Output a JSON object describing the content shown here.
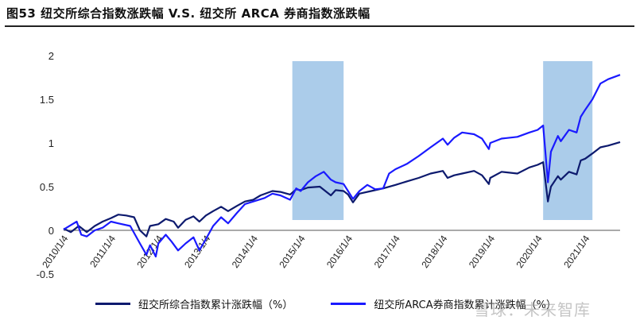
{
  "title": "图53 纽交所综合指数涨跌幅 V.S. 纽交所 ARCA 券商指数涨跌幅",
  "watermark": "雪球：未来智库",
  "colors": {
    "nyse": "#0d1a6e",
    "arca": "#1a1aff",
    "shade": "#9cc3e6"
  },
  "chart_data": {
    "type": "line",
    "title": "",
    "xlabel": "",
    "ylabel": "",
    "ylim": [
      -0.5,
      2
    ],
    "yticks": [
      "-0.5",
      "0",
      "0.5",
      "1",
      "1.5",
      "2"
    ],
    "xticks": [
      "2010/1/4",
      "2011/1/4",
      "2012/1/4",
      "2013/1/4",
      "2014/1/4",
      "2015/1/4",
      "2016/1/4",
      "2017/1/4",
      "2018/1/4",
      "2019/1/4",
      "2020/1/4",
      "2021/1/4"
    ],
    "xrange": [
      "2010-01-04",
      "2021-09-30"
    ],
    "shaded_periods": [
      [
        "2014-11-01",
        "2015-12-01"
      ],
      [
        "2020-02-15",
        "2021-03-01"
      ]
    ],
    "legend_position": "bottom",
    "series": [
      {
        "name": "纽交所综合指数累计涨跌幅（%）",
        "color_key": "nyse",
        "points": [
          [
            "2010-01-04",
            0.02
          ],
          [
            "2010-03-01",
            -0.02
          ],
          [
            "2010-05-01",
            0.05
          ],
          [
            "2010-07-01",
            -0.02
          ],
          [
            "2010-09-01",
            0.05
          ],
          [
            "2010-11-01",
            0.1
          ],
          [
            "2011-01-04",
            0.14
          ],
          [
            "2011-03-01",
            0.18
          ],
          [
            "2011-05-01",
            0.17
          ],
          [
            "2011-07-01",
            0.15
          ],
          [
            "2011-08-15",
            0.0
          ],
          [
            "2011-10-04",
            -0.07
          ],
          [
            "2011-11-01",
            0.05
          ],
          [
            "2012-01-04",
            0.07
          ],
          [
            "2012-03-01",
            0.13
          ],
          [
            "2012-05-01",
            0.1
          ],
          [
            "2012-06-04",
            0.03
          ],
          [
            "2012-08-01",
            0.12
          ],
          [
            "2012-10-01",
            0.16
          ],
          [
            "2012-11-15",
            0.1
          ],
          [
            "2013-01-04",
            0.17
          ],
          [
            "2013-03-01",
            0.22
          ],
          [
            "2013-05-01",
            0.27
          ],
          [
            "2013-06-24",
            0.22
          ],
          [
            "2013-09-01",
            0.28
          ],
          [
            "2013-11-01",
            0.33
          ],
          [
            "2014-01-04",
            0.35
          ],
          [
            "2014-03-01",
            0.4
          ],
          [
            "2014-06-01",
            0.45
          ],
          [
            "2014-08-01",
            0.44
          ],
          [
            "2014-10-15",
            0.41
          ],
          [
            "2014-12-01",
            0.47
          ],
          [
            "2015-01-04",
            0.46
          ],
          [
            "2015-03-01",
            0.49
          ],
          [
            "2015-06-01",
            0.5
          ],
          [
            "2015-08-25",
            0.4
          ],
          [
            "2015-10-01",
            0.46
          ],
          [
            "2015-12-01",
            0.45
          ],
          [
            "2016-01-04",
            0.41
          ],
          [
            "2016-02-11",
            0.32
          ],
          [
            "2016-04-01",
            0.42
          ],
          [
            "2016-07-01",
            0.45
          ],
          [
            "2016-10-01",
            0.48
          ],
          [
            "2017-01-04",
            0.52
          ],
          [
            "2017-04-01",
            0.56
          ],
          [
            "2017-07-01",
            0.6
          ],
          [
            "2017-10-01",
            0.65
          ],
          [
            "2018-01-04",
            0.68
          ],
          [
            "2018-02-09",
            0.6
          ],
          [
            "2018-04-01",
            0.63
          ],
          [
            "2018-06-01",
            0.65
          ],
          [
            "2018-09-01",
            0.68
          ],
          [
            "2018-11-01",
            0.63
          ],
          [
            "2018-12-24",
            0.53
          ],
          [
            "2019-01-04",
            0.6
          ],
          [
            "2019-04-01",
            0.67
          ],
          [
            "2019-08-01",
            0.65
          ],
          [
            "2019-11-01",
            0.72
          ],
          [
            "2020-01-04",
            0.75
          ],
          [
            "2020-02-15",
            0.78
          ],
          [
            "2020-03-23",
            0.33
          ],
          [
            "2020-04-15",
            0.5
          ],
          [
            "2020-06-08",
            0.62
          ],
          [
            "2020-06-30",
            0.58
          ],
          [
            "2020-09-01",
            0.67
          ],
          [
            "2020-10-30",
            0.64
          ],
          [
            "2020-12-01",
            0.8
          ],
          [
            "2021-01-04",
            0.82
          ],
          [
            "2021-03-01",
            0.88
          ],
          [
            "2021-05-01",
            0.95
          ],
          [
            "2021-07-01",
            0.97
          ],
          [
            "2021-09-30",
            1.01
          ]
        ]
      },
      {
        "name": "纽交所ARCA券商指数累计涨跌幅（%）",
        "color_key": "arca",
        "points": [
          [
            "2010-01-04",
            0.01
          ],
          [
            "2010-03-01",
            0.06
          ],
          [
            "2010-04-15",
            0.1
          ],
          [
            "2010-05-20",
            -0.05
          ],
          [
            "2010-07-01",
            -0.07
          ],
          [
            "2010-09-01",
            0.0
          ],
          [
            "2010-11-01",
            0.03
          ],
          [
            "2011-01-04",
            0.1
          ],
          [
            "2011-03-01",
            0.08
          ],
          [
            "2011-06-01",
            0.05
          ],
          [
            "2011-08-15",
            -0.15
          ],
          [
            "2011-10-04",
            -0.28
          ],
          [
            "2011-11-01",
            -0.17
          ],
          [
            "2011-12-15",
            -0.3
          ],
          [
            "2012-01-04",
            -0.15
          ],
          [
            "2012-03-01",
            -0.05
          ],
          [
            "2012-04-15",
            -0.13
          ],
          [
            "2012-06-04",
            -0.23
          ],
          [
            "2012-08-01",
            -0.15
          ],
          [
            "2012-10-01",
            -0.08
          ],
          [
            "2012-11-15",
            -0.23
          ],
          [
            "2013-01-04",
            -0.1
          ],
          [
            "2013-03-01",
            0.05
          ],
          [
            "2013-05-01",
            0.15
          ],
          [
            "2013-06-24",
            0.08
          ],
          [
            "2013-09-01",
            0.2
          ],
          [
            "2013-11-01",
            0.3
          ],
          [
            "2014-01-04",
            0.33
          ],
          [
            "2014-04-01",
            0.37
          ],
          [
            "2014-06-01",
            0.42
          ],
          [
            "2014-08-01",
            0.4
          ],
          [
            "2014-10-15",
            0.35
          ],
          [
            "2014-12-01",
            0.48
          ],
          [
            "2015-01-04",
            0.45
          ],
          [
            "2015-03-01",
            0.55
          ],
          [
            "2015-05-01",
            0.62
          ],
          [
            "2015-07-01",
            0.67
          ],
          [
            "2015-08-25",
            0.58
          ],
          [
            "2015-10-01",
            0.55
          ],
          [
            "2015-12-01",
            0.53
          ],
          [
            "2016-01-04",
            0.45
          ],
          [
            "2016-02-11",
            0.36
          ],
          [
            "2016-04-01",
            0.45
          ],
          [
            "2016-06-01",
            0.52
          ],
          [
            "2016-08-01",
            0.47
          ],
          [
            "2016-10-01",
            0.48
          ],
          [
            "2016-11-15",
            0.65
          ],
          [
            "2017-01-04",
            0.7
          ],
          [
            "2017-04-01",
            0.76
          ],
          [
            "2017-07-01",
            0.85
          ],
          [
            "2017-10-01",
            0.95
          ],
          [
            "2018-01-04",
            1.05
          ],
          [
            "2018-02-09",
            0.98
          ],
          [
            "2018-04-01",
            1.06
          ],
          [
            "2018-06-01",
            1.12
          ],
          [
            "2018-09-01",
            1.1
          ],
          [
            "2018-11-01",
            1.05
          ],
          [
            "2018-12-24",
            0.93
          ],
          [
            "2019-01-04",
            1.0
          ],
          [
            "2019-04-01",
            1.05
          ],
          [
            "2019-08-01",
            1.07
          ],
          [
            "2019-11-01",
            1.12
          ],
          [
            "2020-01-04",
            1.15
          ],
          [
            "2020-02-15",
            1.2
          ],
          [
            "2020-03-23",
            0.55
          ],
          [
            "2020-04-15",
            0.9
          ],
          [
            "2020-06-08",
            1.08
          ],
          [
            "2020-06-30",
            1.02
          ],
          [
            "2020-09-01",
            1.15
          ],
          [
            "2020-10-30",
            1.12
          ],
          [
            "2020-12-01",
            1.3
          ],
          [
            "2021-01-04",
            1.38
          ],
          [
            "2021-03-01",
            1.5
          ],
          [
            "2021-05-01",
            1.68
          ],
          [
            "2021-07-01",
            1.73
          ],
          [
            "2021-09-30",
            1.78
          ]
        ]
      }
    ]
  }
}
